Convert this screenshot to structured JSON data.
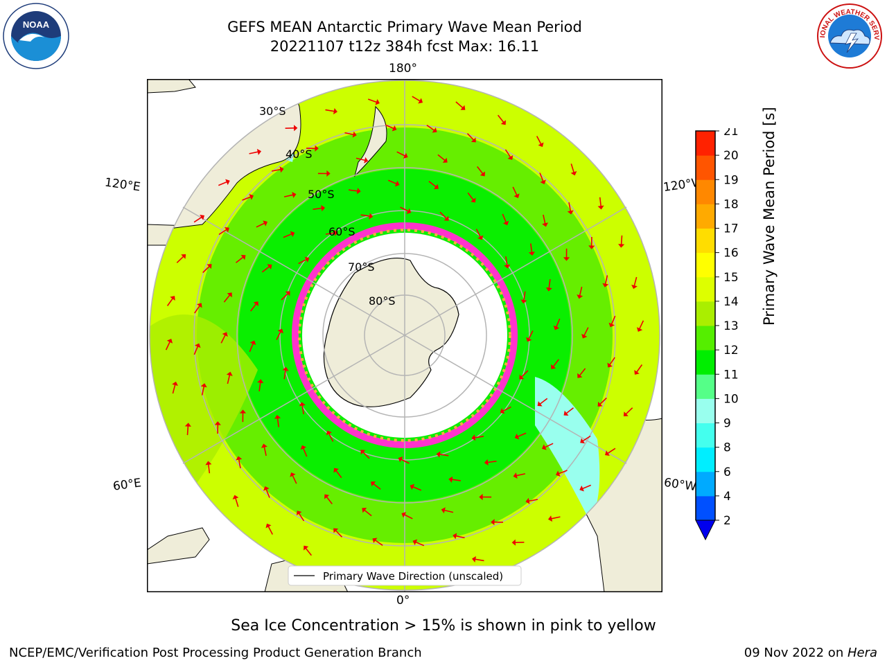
{
  "title": {
    "line1": "GEFS MEAN Antarctic Primary Wave Mean Period",
    "line2": "20221107 t12z 384h fcst   Max: 16.11"
  },
  "logos": {
    "left": {
      "name": "NOAA",
      "ring_text": "NATIONAL OCEANIC AND ATMOSPHERIC ADMINISTRATION · U.S. DEPARTMENT OF COMMERCE"
    },
    "right": {
      "ring_text": "NATIONAL WEATHER SERVICE"
    }
  },
  "map": {
    "projection": "south-polar-stereographic",
    "longitude_labels": {
      "top": "180°",
      "bottom": "0°",
      "left_upper": "120°E",
      "left_lower": "60°E",
      "right_upper": "120°W",
      "right_lower": "60°W"
    },
    "latitude_labels": [
      "30°S",
      "40°S",
      "50°S",
      "60°S",
      "70°S",
      "80°S"
    ],
    "legend": "Primary Wave Direction (unscaled)",
    "colors": {
      "land": "#efedd9",
      "ice_free_sea": "#ffffff",
      "ocean_dominant": "#55ee00",
      "arrow": "#ee0000",
      "grid": "#b4b4b4"
    }
  },
  "colorbar": {
    "label": "Primary Wave Mean Period [s]",
    "ticks": [
      "2",
      "4",
      "6",
      "8",
      "9",
      "10",
      "11",
      "12",
      "13",
      "14",
      "15",
      "16",
      "17",
      "18",
      "19",
      "20",
      "21"
    ],
    "colors": [
      "#0050ff",
      "#00aaff",
      "#00eeff",
      "#44ffee",
      "#99ffee",
      "#55ff88",
      "#00ee00",
      "#55ee00",
      "#aaee00",
      "#ddff00",
      "#ffff00",
      "#ffdd00",
      "#ffaa00",
      "#ff8800",
      "#ff5500",
      "#ff2200"
    ],
    "under_color": "#0000ee"
  },
  "note": "Sea Ice Concentration > 15% is shown in pink to yellow",
  "footer": {
    "left": "NCEP/EMC/Verification Post Processing Product Generation Branch",
    "date": "09 Nov 2022 on ",
    "machine": "Hera"
  }
}
